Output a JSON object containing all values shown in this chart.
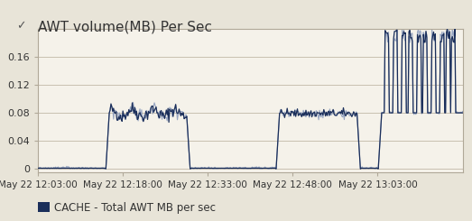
{
  "title": "AWT volume(MB) Per Sec",
  "bg_color": "#e8e4d8",
  "plot_bg_color": "#f5f2ea",
  "border_color": "#b0a898",
  "line_color_dark": "#1a2e5a",
  "line_color_light": "#8899bb",
  "ylabel_ticks": [
    0,
    0.04,
    0.08,
    0.12,
    0.16
  ],
  "x_tick_labels": [
    "May 22 12:03:00",
    "May 22 12:18:00",
    "May 22 12:33:00",
    "May 22 12:48:00",
    "May 22 13:03:00"
  ],
  "legend_label": "CACHE - Total AWT MB per sec",
  "title_fontsize": 11,
  "tick_fontsize": 8,
  "legend_fontsize": 8.5
}
